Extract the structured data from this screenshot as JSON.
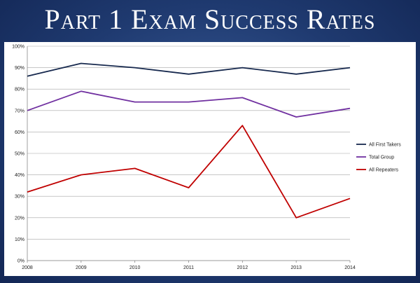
{
  "slide": {
    "title": "Part 1 Exam Success Rates"
  },
  "chart_data": {
    "type": "line",
    "title": "",
    "xlabel": "",
    "ylabel": "",
    "x": [
      "2008",
      "2009",
      "2010",
      "2011",
      "2012",
      "2013",
      "2014"
    ],
    "ylim": [
      0,
      100
    ],
    "y_ticks": [
      "0%",
      "10%",
      "20%",
      "30%",
      "40%",
      "50%",
      "60%",
      "70%",
      "80%",
      "90%",
      "100%"
    ],
    "y_unit": "%",
    "grid": true,
    "legend_position": "right",
    "series": [
      {
        "name": "All First Takers",
        "color": "#17294e",
        "values": [
          86,
          92,
          90,
          87,
          90,
          87,
          90
        ]
      },
      {
        "name": "Total Group",
        "color": "#7030a0",
        "values": [
          70,
          79,
          74,
          74,
          76,
          67,
          71
        ]
      },
      {
        "name": "All Repeaters",
        "color": "#c00000",
        "values": [
          32,
          40,
          43,
          34,
          63,
          20,
          29
        ]
      }
    ]
  }
}
